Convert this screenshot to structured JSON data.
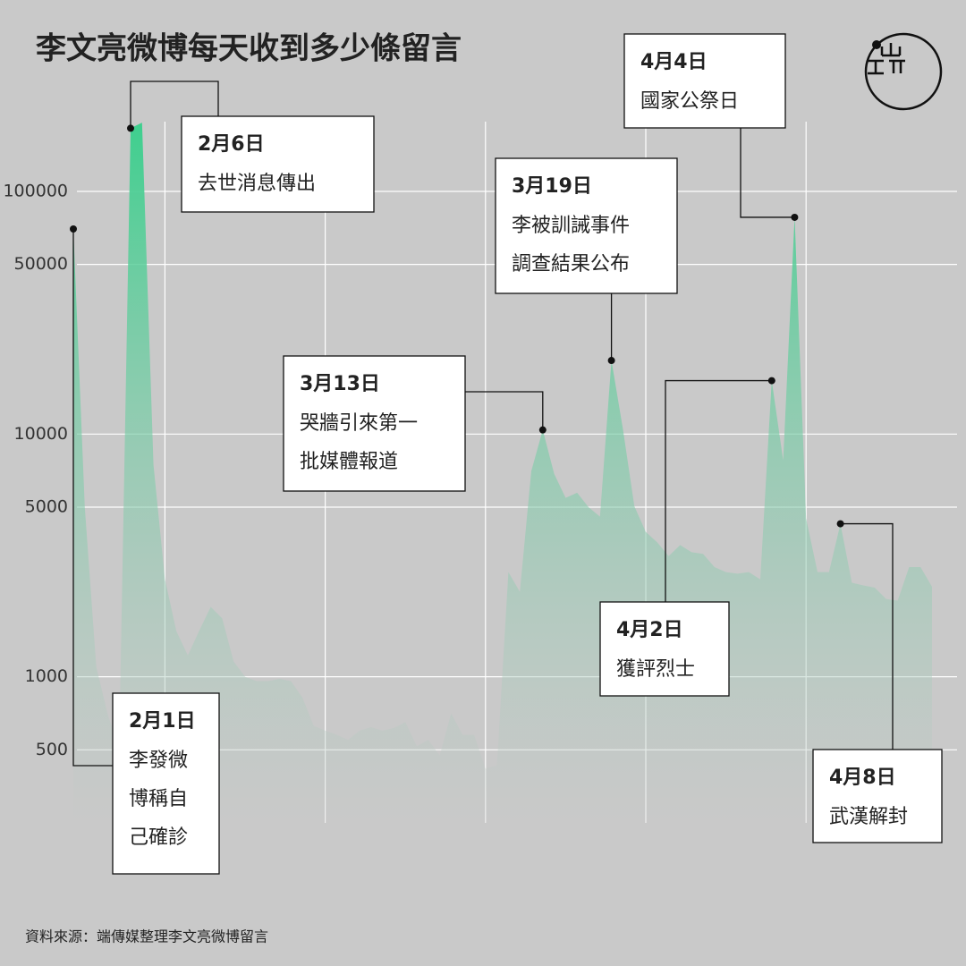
{
  "chart_data": {
    "type": "area",
    "title": "李文亮微博每天收到多少條留言",
    "source": "資料來源：端傳媒整理李文亮微博留言",
    "log_scale": true,
    "grid": true,
    "color": "#3ecf8e",
    "categories": [
      null,
      null,
      null,
      null,
      null,
      null,
      null,
      null,
      null,
      null,
      null,
      null,
      null,
      null,
      null,
      null,
      null,
      null,
      null,
      null,
      null,
      null,
      null,
      null,
      null,
      null,
      null,
      null,
      null,
      null,
      null,
      null,
      null,
      null,
      null,
      null,
      null,
      null,
      null,
      null,
      null,
      null,
      null,
      null,
      null,
      null,
      null,
      null,
      null,
      null,
      null,
      null,
      null,
      null,
      null,
      null,
      null,
      null,
      null,
      null,
      null,
      null,
      null,
      null,
      null,
      null,
      null,
      null,
      null,
      null,
      null,
      null,
      null,
      null,
      null,
      null
    ],
    "values": [
      70000,
      5000,
      1100,
      700,
      500,
      182000,
      192000,
      7460,
      2520,
      1540,
      1225,
      1550,
      1940,
      1740,
      1155,
      1000,
      960,
      960,
      980,
      960,
      822,
      627,
      600,
      577,
      550,
      600,
      620,
      600,
      615,
      650,
      517,
      550,
      474,
      706,
      577,
      577,
      418,
      432,
      2700,
      2240,
      7040,
      10400,
      6850,
      5460,
      5730,
      5000,
      4570,
      20100,
      10500,
      5050,
      3950,
      3580,
      3140,
      3490,
      3260,
      3210,
      2830,
      2700,
      2660,
      2700,
      2520,
      16600,
      7790,
      78200,
      4490,
      2700,
      2700,
      4270,
      2440,
      2380,
      2330,
      2090,
      2060,
      2830,
      2830,
      2350
    ],
    "xlim": [
      0,
      75
    ],
    "xgrid": [
      8,
      22,
      36,
      50,
      64
    ],
    "ylim": [
      250,
      250000
    ],
    "yticks": [
      100000,
      50000,
      10000,
      5000,
      1000,
      500
    ],
    "annotations": [
      {
        "label": "2月1日",
        "text": [
          "李發微",
          "博稱自",
          "己確診"
        ]
      },
      {
        "label": "2月6日",
        "text": [
          "去世消息傳出"
        ]
      },
      {
        "label": "3月13日",
        "text": [
          "哭牆引來第一",
          "批媒體報道"
        ]
      },
      {
        "label": "3月19日",
        "text": [
          "李被訓誡事件",
          "調查結果公布"
        ]
      },
      {
        "label": "4月2日",
        "text": [
          "獲評烈士"
        ]
      },
      {
        "label": "4月4日",
        "text": [
          "國家公祭日"
        ]
      },
      {
        "label": "4月8日",
        "text": [
          "武漢解封"
        ]
      }
    ]
  }
}
